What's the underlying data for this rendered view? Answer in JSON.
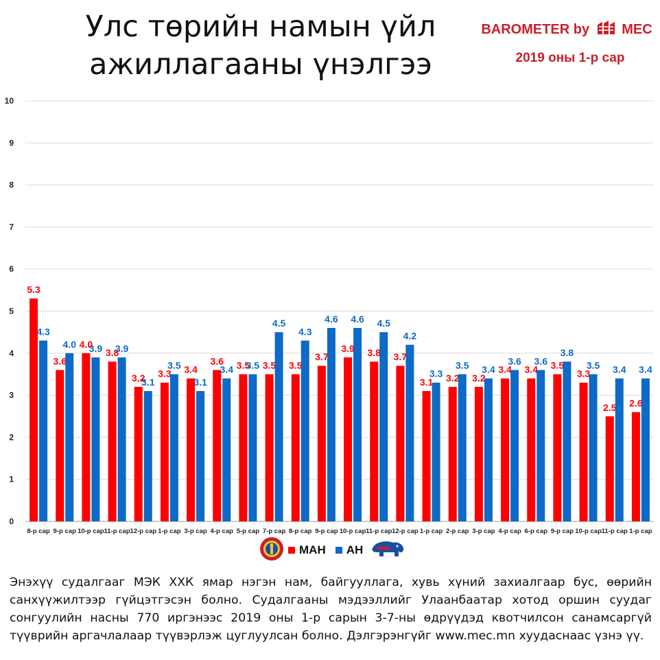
{
  "header": {
    "title_line1": "Улс төрийн намын үйл",
    "title_line2": "ажиллагааны үнэлгээ",
    "brand_left": "BAROMETER by",
    "brand_right": "MEC",
    "subtitle": "2019 оны 1-р сар"
  },
  "colors": {
    "man": "#ff0000",
    "ah": "#0d6ac6",
    "brand": "#c8202a"
  },
  "legend": {
    "man_label": "МАН",
    "ah_label": "АН",
    "man_icon": "soyombo-emblem-icon",
    "ah_icon": "elephant-logo-icon"
  },
  "footnote": "Энэхүү судалгааг МЭК ХХК ямар нэгэн нам, байгууллага, хувь хүний захиалгаар бус, өөрийн санхүүжилтээр гүйцэтгэсэн болно. Судалгааны мэдээллийг Улаанбаатар хотод оршин суудаг сонгуулийн насны 770 иргэнээс 2019 оны 1-р сарын 3-7-ны өдрүүдэд квотчилсон санамсаргүй түүврийн аргачлалаар түүвэрлэж цуглуулсан болно. Дэлгэрэнгүйг www.mec.mn хуудаснаас үзнэ үү.",
  "chart_data": {
    "type": "bar",
    "categories": [
      "8-р сар",
      "9-р сар",
      "10-р сар",
      "11-р сар",
      "12-р сар",
      "1-р сар",
      "3-р сар",
      "4-р сар",
      "5-р сар",
      "7-р сар",
      "8-р сар",
      "9-р сар",
      "10-р сар",
      "11-р сар",
      "12-р сар",
      "1-р сар",
      "2-р сар",
      "3-р сар",
      "4-р сар",
      "6-р сар",
      "9-р сар",
      "10-р сар",
      "11-р сар",
      "1-р сар"
    ],
    "series": [
      {
        "name": "МАН",
        "color": "#ff0000",
        "values": [
          5.3,
          3.6,
          4.0,
          3.8,
          3.2,
          3.3,
          3.4,
          3.6,
          3.5,
          3.5,
          3.5,
          3.7,
          3.9,
          3.8,
          3.7,
          3.1,
          3.2,
          3.2,
          3.4,
          3.4,
          3.5,
          3.3,
          2.5,
          2.6
        ]
      },
      {
        "name": "АН",
        "color": "#0d6ac6",
        "values": [
          4.3,
          4.0,
          3.9,
          3.9,
          3.1,
          3.5,
          3.1,
          3.4,
          3.5,
          4.5,
          4.3,
          4.6,
          4.6,
          4.5,
          4.2,
          3.3,
          3.5,
          3.4,
          3.6,
          3.6,
          3.8,
          3.5,
          3.4,
          3.4
        ]
      }
    ],
    "ylim": [
      0,
      10
    ],
    "yticks": [
      0,
      1,
      2,
      3,
      4,
      5,
      6,
      7,
      8,
      9,
      10
    ],
    "grid": true,
    "legend_position": "bottom"
  }
}
